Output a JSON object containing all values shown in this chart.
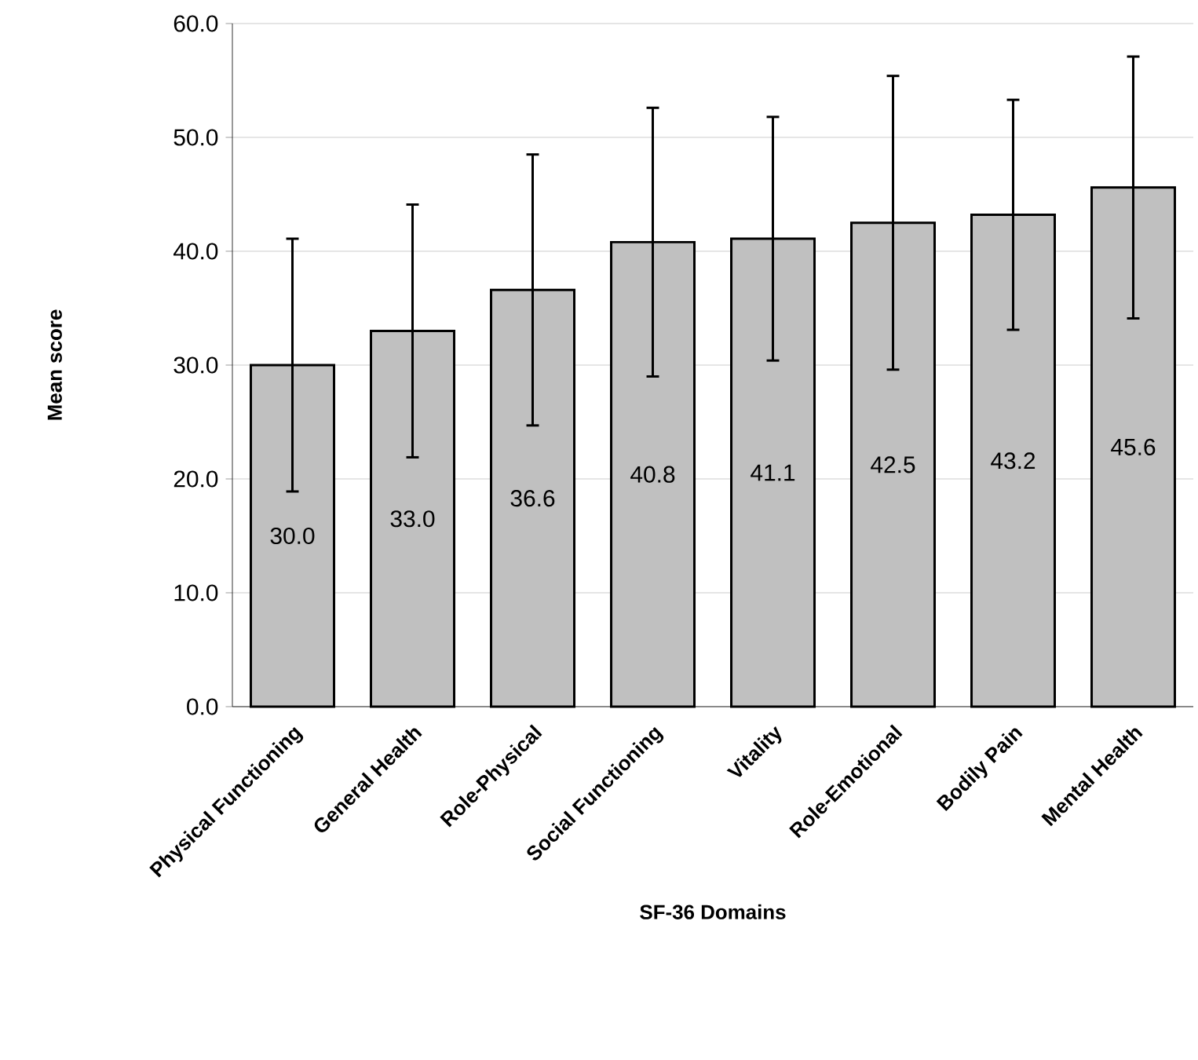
{
  "chart_data": {
    "type": "bar",
    "xlabel": "SF-36 Domains",
    "ylabel": "Mean score",
    "categories": [
      "Physical Functioning",
      "General Health",
      "Role-Physical",
      "Social Functioning",
      "Vitality",
      "Role-Emotional",
      "Bodily Pain",
      "Mental Health"
    ],
    "values": [
      30.0,
      33.0,
      36.6,
      40.8,
      41.1,
      42.5,
      43.2,
      45.6
    ],
    "value_labels": [
      "30.0",
      "33.0",
      "36.6",
      "40.8",
      "41.1",
      "42.5",
      "43.2",
      "45.6"
    ],
    "errors": [
      11.1,
      11.1,
      11.9,
      11.8,
      10.7,
      12.9,
      10.1,
      11.5
    ],
    "color": "#c0c0c0",
    "ylim": [
      0,
      60
    ],
    "yticks": [
      {
        "value": 0,
        "label": "0.0"
      },
      {
        "value": 10,
        "label": "10.0"
      },
      {
        "value": 20,
        "label": "20.0"
      },
      {
        "value": 30,
        "label": "30.0"
      },
      {
        "value": 40,
        "label": "40.0"
      },
      {
        "value": 50,
        "label": "50.0"
      },
      {
        "value": 60,
        "label": "60.0"
      }
    ],
    "grid": "y"
  }
}
